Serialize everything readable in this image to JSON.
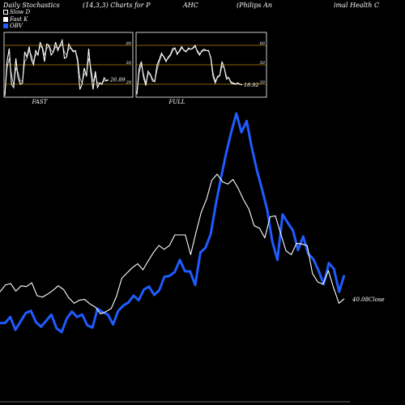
{
  "header": {
    "parts": [
      "Daily Stochastics",
      "(14,3,3) Charts for P",
      "AHC",
      "(Philips An",
      "imal Health C"
    ]
  },
  "legend": [
    {
      "label": "Slow  D",
      "color": "#ffffff"
    },
    {
      "label": "Fast K",
      "color": "#ffffff"
    },
    {
      "label": "OBV",
      "color": "#1f5cff"
    }
  ],
  "colors": {
    "background": "#000000",
    "obv": "#1f5cff",
    "close": "#ffffff",
    "level_line": "#b8860b"
  },
  "chart_data": [
    {
      "type": "line",
      "panel": "FAST",
      "caption": "FAST",
      "ylim": [
        0,
        100
      ],
      "levels": [
        20,
        50,
        80
      ],
      "level_labels": [
        "80",
        "50",
        "20"
      ],
      "last_value_label": "26.89",
      "series": [
        {
          "values": [
            2,
            55,
            75,
            20,
            15,
            60,
            30,
            20,
            22,
            70,
            62,
            78,
            58,
            50,
            72,
            65,
            85,
            75,
            55,
            82,
            80,
            65,
            70,
            85,
            72,
            80,
            88,
            60,
            62,
            82,
            75,
            70,
            72,
            55,
            12,
            20,
            45,
            32,
            75,
            38,
            12,
            40,
            15,
            22,
            20,
            30,
            25,
            27
          ]
        },
        {
          "values": [
            5,
            45,
            60,
            35,
            18,
            45,
            38,
            25,
            25,
            55,
            60,
            72,
            65,
            55,
            65,
            68,
            78,
            78,
            65,
            75,
            80,
            72,
            70,
            78,
            76,
            78,
            82,
            70,
            65,
            75,
            76,
            72,
            72,
            60,
            30,
            22,
            36,
            36,
            60,
            45,
            25,
            32,
            22,
            22,
            21,
            25,
            26,
            26
          ]
        }
      ]
    },
    {
      "type": "line",
      "panel": "FULL",
      "caption": "FULL",
      "ylim": [
        0,
        100
      ],
      "levels": [
        20,
        50,
        80
      ],
      "level_labels": [
        "80",
        "50",
        "20"
      ],
      "last_value_label": "18.92",
      "series": [
        {
          "values": [
            5,
            45,
            55,
            30,
            18,
            40,
            35,
            25,
            24,
            50,
            58,
            68,
            62,
            55,
            62,
            66,
            75,
            76,
            66,
            72,
            78,
            72,
            70,
            76,
            74,
            76,
            80,
            70,
            65,
            72,
            74,
            72,
            72,
            60,
            32,
            22,
            32,
            34,
            55,
            45,
            28,
            30,
            22,
            21,
            20,
            22,
            20,
            19
          ]
        },
        {
          "values": [
            4,
            38,
            50,
            35,
            22,
            35,
            36,
            28,
            25,
            42,
            55,
            65,
            63,
            57,
            60,
            64,
            72,
            75,
            68,
            70,
            76,
            73,
            71,
            74,
            74,
            75,
            78,
            72,
            67,
            70,
            72,
            72,
            71,
            62,
            38,
            25,
            30,
            33,
            48,
            45,
            32,
            30,
            24,
            22,
            21,
            21,
            20,
            19
          ]
        }
      ]
    },
    {
      "type": "line",
      "panel": "main",
      "last_value_label": "40.08",
      "last_value_caption": "Close",
      "series": [
        {
          "name": "OBV",
          "color": "#1f5cff",
          "values": [
            69,
            69,
            77,
            60,
            71,
            82,
            85,
            70,
            64,
            72,
            80,
            62,
            57,
            75,
            84,
            77,
            80,
            66,
            63,
            88,
            83,
            80,
            67,
            85,
            92,
            96,
            105,
            99,
            113,
            117,
            106,
            112,
            130,
            131,
            136,
            152,
            137,
            137,
            119,
            162,
            168,
            186,
            225,
            260,
            292,
            320,
            345,
            320,
            335,
            300,
            270,
            245,
            218,
            176,
            152,
            212,
            201,
            191,
            165,
            183,
            160,
            153,
            138,
            120,
            148,
            140,
            110,
            132
          ]
        },
        {
          "name": "Close",
          "color": "#ffffff",
          "values": [
            110,
            119,
            121,
            111,
            118,
            117,
            122,
            105,
            103,
            107,
            112,
            118,
            113,
            102,
            95,
            99,
            100,
            94,
            90,
            81,
            84,
            88,
            104,
            128,
            135,
            142,
            147,
            139,
            151,
            162,
            171,
            166,
            171,
            185,
            185,
            185,
            159,
            188,
            215,
            232,
            257,
            265,
            255,
            252,
            258,
            246,
            231,
            219,
            197,
            194,
            181,
            209,
            210,
            187,
            164,
            159,
            174,
            173,
            171,
            134,
            123,
            120,
            138,
            115,
            95,
            101
          ]
        }
      ]
    }
  ]
}
